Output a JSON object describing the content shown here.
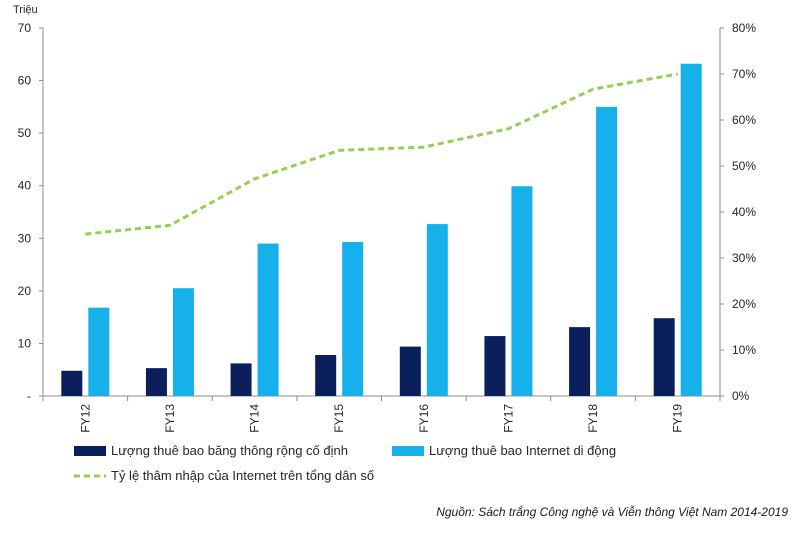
{
  "chart_data": {
    "type": "bar",
    "y_unit": "Triệu",
    "categories": [
      "FY12",
      "FY13",
      "FY14",
      "FY15",
      "FY16",
      "FY17",
      "FY18",
      "FY19"
    ],
    "series": [
      {
        "name": "Lượng thuê bao băng thông rộng cố định",
        "type": "bar",
        "axis": "left",
        "color": "#0b1f5c",
        "values": [
          4.8,
          5.3,
          6.2,
          7.8,
          9.4,
          11.4,
          13.1,
          14.8
        ]
      },
      {
        "name": "Lượng thuê bao Internet di động",
        "type": "bar",
        "axis": "left",
        "color": "#16b1ea",
        "values": [
          16.8,
          20.5,
          29.0,
          29.3,
          32.7,
          39.9,
          55.0,
          63.2
        ]
      },
      {
        "name": "Tỷ lệ thâm nhập của Internet trên tổng dân số",
        "type": "line",
        "axis": "right",
        "color": "#92d050",
        "dash": true,
        "values": [
          35.2,
          37.1,
          47.2,
          53.4,
          54.1,
          58.1,
          66.7,
          70.0
        ]
      }
    ],
    "y_left": {
      "min": 0,
      "max": 70,
      "ticks": [
        "-",
        "10",
        "20",
        "30",
        "40",
        "50",
        "60",
        "70"
      ]
    },
    "y_right": {
      "min": 0,
      "max": 80,
      "ticks": [
        "0%",
        "10%",
        "20%",
        "30%",
        "40%",
        "50%",
        "60%",
        "70%",
        "80%"
      ]
    },
    "grid": false,
    "legend_placement": "bottom"
  },
  "source_note": "Nguồn: Sách trắng Công nghệ và Viễn thông Việt Nam 2014-2019"
}
